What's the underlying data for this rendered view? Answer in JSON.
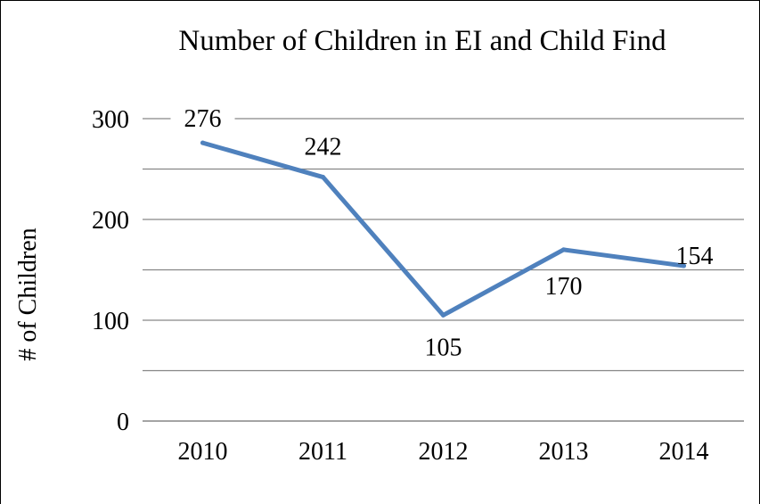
{
  "chart_data": {
    "type": "line",
    "title": "Number of Children in EI and Child Find",
    "xlabel": "",
    "ylabel": "# of Children",
    "categories": [
      "2010",
      "2011",
      "2012",
      "2013",
      "2014"
    ],
    "series": [
      {
        "values": [
          276,
          242,
          105,
          170,
          154
        ],
        "data_labels": [
          "276",
          "242",
          "105",
          "170",
          "154"
        ]
      }
    ],
    "ylim": [
      0,
      300
    ],
    "yticks": [
      "0",
      "100",
      "200",
      "300"
    ],
    "grid": true,
    "legend": "none",
    "line_color": "#4F81BD"
  }
}
